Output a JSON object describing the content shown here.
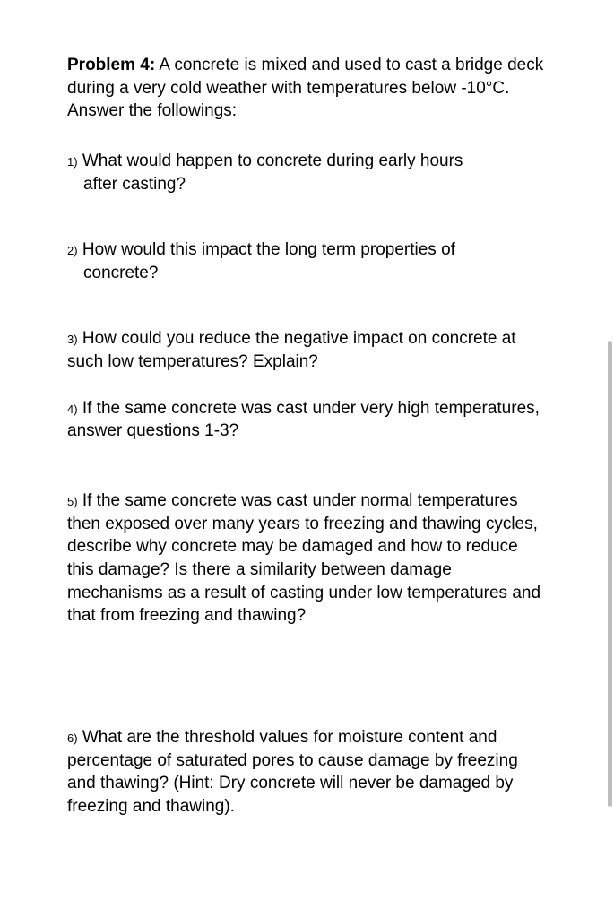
{
  "title_bold": "Problem 4:",
  "title_rest": " A concrete is mixed and used to cast a bridge deck during a very cold weather with temperatures below -10°C. Answer the followings:",
  "q1": {
    "marker": "1)",
    "line1": " What would happen to concrete during early hours",
    "line2": "after casting?"
  },
  "q2": {
    "marker": "2)",
    "line1": " How would this impact the long term properties of",
    "line2": "concrete?"
  },
  "q3": {
    "marker": "3)",
    "text": " How could you reduce the negative impact on concrete at such low temperatures? Explain?"
  },
  "q4": {
    "marker": "4)",
    "text": " If the same concrete was cast under very high temperatures, answer questions 1-3?"
  },
  "q5": {
    "marker": "5)",
    "text": " If the same concrete was cast under normal temperatures then exposed over many years to freezing and thawing cycles, describe why concrete may be damaged and how to reduce this damage? Is there a similarity between damage mechanisms as a result of casting under low temperatures and that from freezing and thawing?"
  },
  "q6": {
    "marker": "6)",
    "text": " What are the threshold values for moisture content and percentage of saturated pores to cause damage by freezing and thawing? (Hint: Dry concrete will never be damaged by freezing and thawing)."
  }
}
